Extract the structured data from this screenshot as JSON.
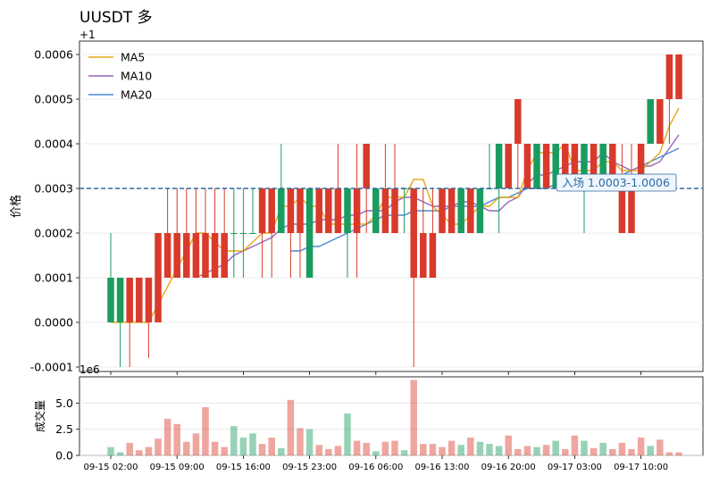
{
  "chart_data": {
    "type": "candlestick",
    "title": "UUSDT 多",
    "offset_label": "+1",
    "ylabel": "价格",
    "price_ylim": [
      -0.00011,
      0.00063
    ],
    "price_yticks": [
      "0.0006",
      "0.0005",
      "0.0004",
      "0.0003",
      "0.0002",
      "0.0001",
      "0.0000",
      "-0.0001"
    ],
    "price_ytick_values": [
      0.0006,
      0.0005,
      0.0004,
      0.0003,
      0.0002,
      0.0001,
      0.0,
      -0.0001
    ],
    "entry_line": 0.0003,
    "annotation": "入场 1.0003-1.0006",
    "legend": [
      "MA5",
      "MA10",
      "MA20"
    ],
    "legend_position": "top-left",
    "ma_colors": {
      "MA5": "#e6a817",
      "MA10": "#9467bd",
      "MA20": "#4a8ad4"
    },
    "up_color": "#1a9c5e",
    "down_color": "#d93a2b",
    "entry_color": "#2e6aa3",
    "volume_ylabel": "成交量",
    "volume_exponent": "1e6",
    "volume_ylim": [
      0,
      7.5
    ],
    "volume_yticks": [
      "0.0",
      "2.5",
      "5.0"
    ],
    "volume_ytick_values": [
      0.0,
      2.5,
      5.0
    ],
    "xticks": [
      "09-15 02:00",
      "09-15 09:00",
      "09-15 16:00",
      "09-15 23:00",
      "09-16 06:00",
      "09-16 13:00",
      "09-16 20:00",
      "09-17 03:00",
      "09-17 10:00"
    ],
    "candles": [
      {
        "o": 0.0,
        "h": 0.0002,
        "l": 0.0,
        "c": 0.0001,
        "v": 0.8
      },
      {
        "o": 0.0,
        "h": 0.0001,
        "l": -0.0001,
        "c": 0.0001,
        "v": 0.3
      },
      {
        "o": 0.0001,
        "h": 0.0001,
        "l": -0.0001,
        "c": 0.0,
        "v": 1.2
      },
      {
        "o": 0.0001,
        "h": 0.0001,
        "l": 0.0,
        "c": 0.0,
        "v": 0.5
      },
      {
        "o": 0.0001,
        "h": 0.0001,
        "l": -8e-05,
        "c": 0.0,
        "v": 0.8
      },
      {
        "o": 0.0002,
        "h": 0.0002,
        "l": 0.0,
        "c": 0.0,
        "v": 1.6
      },
      {
        "o": 0.0002,
        "h": 0.0003,
        "l": 0.0001,
        "c": 0.0001,
        "v": 3.5
      },
      {
        "o": 0.0002,
        "h": 0.0003,
        "l": 0.0001,
        "c": 0.0001,
        "v": 3.0
      },
      {
        "o": 0.0002,
        "h": 0.0003,
        "l": 0.0001,
        "c": 0.0001,
        "v": 1.3
      },
      {
        "o": 0.0002,
        "h": 0.0003,
        "l": 0.0001,
        "c": 0.0001,
        "v": 2.1
      },
      {
        "o": 0.0002,
        "h": 0.0003,
        "l": 0.0001,
        "c": 0.0001,
        "v": 4.6
      },
      {
        "o": 0.0002,
        "h": 0.0003,
        "l": 0.0001,
        "c": 0.0001,
        "v": 1.3
      },
      {
        "o": 0.0002,
        "h": 0.0003,
        "l": 0.0001,
        "c": 0.0001,
        "v": 0.8
      },
      {
        "o": 0.0002,
        "h": 0.0003,
        "l": 0.0001,
        "c": 0.0002,
        "v": 2.8
      },
      {
        "o": 0.0002,
        "h": 0.0003,
        "l": 0.0001,
        "c": 0.0002,
        "v": 1.7
      },
      {
        "o": 0.0002,
        "h": 0.0003,
        "l": 0.0002,
        "c": 0.0002,
        "v": 2.1
      },
      {
        "o": 0.0003,
        "h": 0.0003,
        "l": 0.0001,
        "c": 0.0002,
        "v": 1.1
      },
      {
        "o": 0.0003,
        "h": 0.0003,
        "l": 0.0001,
        "c": 0.0002,
        "v": 1.7
      },
      {
        "o": 0.0002,
        "h": 0.0004,
        "l": 0.0002,
        "c": 0.0003,
        "v": 0.7
      },
      {
        "o": 0.0003,
        "h": 0.0003,
        "l": 0.0001,
        "c": 0.0002,
        "v": 5.3
      },
      {
        "o": 0.0003,
        "h": 0.0003,
        "l": 0.0001,
        "c": 0.0002,
        "v": 2.6
      },
      {
        "o": 0.0001,
        "h": 0.0003,
        "l": 0.0001,
        "c": 0.0003,
        "v": 2.5
      },
      {
        "o": 0.0003,
        "h": 0.0003,
        "l": 0.0002,
        "c": 0.0002,
        "v": 1.0
      },
      {
        "o": 0.0003,
        "h": 0.0003,
        "l": 0.0002,
        "c": 0.0002,
        "v": 0.6
      },
      {
        "o": 0.0003,
        "h": 0.0004,
        "l": 0.0002,
        "c": 0.0002,
        "v": 0.9
      },
      {
        "o": 0.0002,
        "h": 0.0003,
        "l": 0.0001,
        "c": 0.0003,
        "v": 4.0
      },
      {
        "o": 0.0003,
        "h": 0.0004,
        "l": 0.0001,
        "c": 0.0002,
        "v": 1.4
      },
      {
        "o": 0.0004,
        "h": 0.0004,
        "l": 0.0002,
        "c": 0.0003,
        "v": 1.2
      },
      {
        "o": 0.0002,
        "h": 0.0003,
        "l": 0.0002,
        "c": 0.0003,
        "v": 0.4
      },
      {
        "o": 0.0003,
        "h": 0.0004,
        "l": 0.0002,
        "c": 0.0002,
        "v": 1.3
      },
      {
        "o": 0.0003,
        "h": 0.0004,
        "l": 0.0002,
        "c": 0.0002,
        "v": 1.4
      },
      {
        "o": 0.0003,
        "h": 0.0003,
        "l": 0.0002,
        "c": 0.0003,
        "v": 0.5
      },
      {
        "o": 0.0003,
        "h": 0.0003,
        "l": -0.0001,
        "c": 0.0001,
        "v": 7.2
      },
      {
        "o": 0.0002,
        "h": 0.0003,
        "l": 0.0001,
        "c": 0.0001,
        "v": 1.1
      },
      {
        "o": 0.0002,
        "h": 0.0003,
        "l": 0.0001,
        "c": 0.0001,
        "v": 1.1
      },
      {
        "o": 0.0003,
        "h": 0.0003,
        "l": 0.0002,
        "c": 0.0002,
        "v": 0.8
      },
      {
        "o": 0.0003,
        "h": 0.0003,
        "l": 0.0002,
        "c": 0.0002,
        "v": 1.4
      },
      {
        "o": 0.0002,
        "h": 0.0003,
        "l": 0.0002,
        "c": 0.0003,
        "v": 1.0
      },
      {
        "o": 0.0003,
        "h": 0.0003,
        "l": 0.0002,
        "c": 0.0002,
        "v": 1.7
      },
      {
        "o": 0.0002,
        "h": 0.0003,
        "l": 0.0002,
        "c": 0.0003,
        "v": 1.3
      },
      {
        "o": 0.0003,
        "h": 0.0004,
        "l": 0.0003,
        "c": 0.0003,
        "v": 1.1
      },
      {
        "o": 0.0003,
        "h": 0.0004,
        "l": 0.0002,
        "c": 0.0004,
        "v": 0.9
      },
      {
        "o": 0.0004,
        "h": 0.0004,
        "l": 0.0003,
        "c": 0.0003,
        "v": 1.9
      },
      {
        "o": 0.0005,
        "h": 0.0005,
        "l": 0.0003,
        "c": 0.0004,
        "v": 0.6
      },
      {
        "o": 0.0004,
        "h": 0.0004,
        "l": 0.0003,
        "c": 0.0003,
        "v": 0.9
      },
      {
        "o": 0.0003,
        "h": 0.0004,
        "l": 0.0003,
        "c": 0.0004,
        "v": 0.8
      },
      {
        "o": 0.0004,
        "h": 0.0004,
        "l": 0.0003,
        "c": 0.0003,
        "v": 1.0
      },
      {
        "o": 0.0003,
        "h": 0.0004,
        "l": 0.0003,
        "c": 0.0004,
        "v": 1.4
      },
      {
        "o": 0.0004,
        "h": 0.0004,
        "l": 0.0003,
        "c": 0.0003,
        "v": 0.6
      },
      {
        "o": 0.0004,
        "h": 0.0004,
        "l": 0.0003,
        "c": 0.0003,
        "v": 1.9
      },
      {
        "o": 0.0003,
        "h": 0.0004,
        "l": 0.0002,
        "c": 0.0004,
        "v": 1.4
      },
      {
        "o": 0.0004,
        "h": 0.0004,
        "l": 0.0003,
        "c": 0.0003,
        "v": 0.7
      },
      {
        "o": 0.0003,
        "h": 0.0004,
        "l": 0.0003,
        "c": 0.0004,
        "v": 1.2
      },
      {
        "o": 0.0004,
        "h": 0.0004,
        "l": 0.0003,
        "c": 0.0003,
        "v": 0.6
      },
      {
        "o": 0.0003,
        "h": 0.0004,
        "l": 0.0002,
        "c": 0.0002,
        "v": 1.2
      },
      {
        "o": 0.0003,
        "h": 0.0004,
        "l": 0.0002,
        "c": 0.0002,
        "v": 0.6
      },
      {
        "o": 0.0004,
        "h": 0.0004,
        "l": 0.0003,
        "c": 0.0003,
        "v": 1.7
      },
      {
        "o": 0.0004,
        "h": 0.0005,
        "l": 0.0004,
        "c": 0.0005,
        "v": 0.9
      },
      {
        "o": 0.0005,
        "h": 0.0005,
        "l": 0.0004,
        "c": 0.0004,
        "v": 1.5
      },
      {
        "o": 0.0006,
        "h": 0.0006,
        "l": 0.0004,
        "c": 0.0005,
        "v": 0.3
      },
      {
        "o": 0.0006,
        "h": 0.0006,
        "l": 0.0005,
        "c": 0.0005,
        "v": 0.3
      }
    ],
    "ma5": [
      0.0,
      0.0,
      0.0,
      0.0,
      0.0,
      4e-05,
      8e-05,
      0.00012,
      0.00016,
      0.0002,
      0.0002,
      0.00018,
      0.00016,
      0.00016,
      0.00016,
      0.00018,
      0.0002,
      0.0002,
      0.00026,
      0.00026,
      0.00028,
      0.00026,
      0.00026,
      0.00022,
      0.00022,
      0.00022,
      0.00022,
      0.00022,
      0.00024,
      0.00028,
      0.00028,
      0.00028,
      0.00032,
      0.00032,
      0.00026,
      0.00024,
      0.00022,
      0.00022,
      0.00024,
      0.00026,
      0.00026,
      0.00028,
      0.00028,
      0.00028,
      0.00034,
      0.00038,
      0.00038,
      0.00038,
      0.0004,
      0.00034,
      0.00034,
      0.00034,
      0.00036,
      0.00036,
      0.00034,
      0.00034,
      0.00034,
      0.00036,
      0.00038,
      0.00044,
      0.00048
    ],
    "ma10": [
      null,
      null,
      null,
      null,
      null,
      null,
      null,
      null,
      null,
      0.0001,
      0.00011,
      0.00012,
      0.00013,
      0.00015,
      0.00016,
      0.00017,
      0.00018,
      0.00019,
      0.00021,
      0.00022,
      0.00022,
      0.00022,
      0.00023,
      0.00023,
      0.00023,
      0.00024,
      0.00024,
      0.00025,
      0.00025,
      0.00025,
      0.00027,
      0.00028,
      0.00028,
      0.00027,
      0.00026,
      0.00026,
      0.00026,
      0.00027,
      0.00027,
      0.00026,
      0.00025,
      0.00025,
      0.00027,
      0.00028,
      0.00031,
      0.00033,
      0.00033,
      0.00034,
      0.00035,
      0.00036,
      0.00036,
      0.00036,
      0.00038,
      0.00036,
      0.00035,
      0.00034,
      0.00035,
      0.00035,
      0.00036,
      0.00039,
      0.00042
    ],
    "ma20": [
      null,
      null,
      null,
      null,
      null,
      null,
      null,
      null,
      null,
      null,
      null,
      null,
      null,
      null,
      null,
      null,
      null,
      null,
      null,
      0.00016,
      0.00016,
      0.00017,
      0.00017,
      0.00018,
      0.00019,
      0.0002,
      0.00021,
      0.00022,
      0.00023,
      0.00024,
      0.00024,
      0.00024,
      0.00025,
      0.00025,
      0.00025,
      0.00025,
      0.00026,
      0.00026,
      0.00026,
      0.00026,
      0.00027,
      0.00028,
      0.00028,
      0.00029,
      0.0003,
      0.0003,
      0.0003,
      0.00031,
      0.00031,
      0.00031,
      0.00031,
      0.00032,
      0.00032,
      0.00033,
      0.00033,
      0.00034,
      0.00035,
      0.00036,
      0.00037,
      0.00038,
      0.00039
    ]
  }
}
